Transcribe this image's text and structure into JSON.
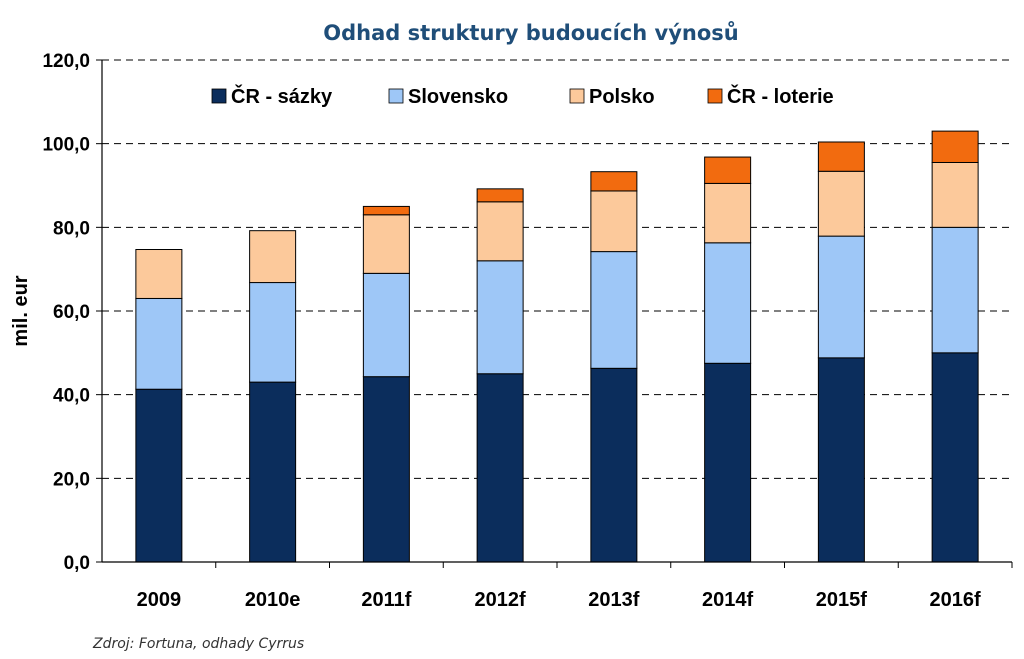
{
  "chart_data": {
    "type": "bar",
    "stacked": true,
    "title": "Odhad struktury budoucích výnosů",
    "ylabel": "mil. eur",
    "xlabel": "",
    "ylim": [
      0,
      120
    ],
    "yticks": [
      "0,0",
      "20,0",
      "40,0",
      "60,0",
      "80,0",
      "100,0",
      "120,0"
    ],
    "grid": true,
    "legend_position": "top",
    "categories": [
      "2009",
      "2010e",
      "2011f",
      "2012f",
      "2013f",
      "2014f",
      "2015f",
      "2016f"
    ],
    "series": [
      {
        "name": "ČR - sázky",
        "color": "#0b2d5c",
        "values": [
          41.3,
          43.0,
          44.3,
          45.0,
          46.3,
          47.5,
          48.8,
          50.0
        ]
      },
      {
        "name": "Slovensko",
        "color": "#9ec7f7",
        "values": [
          21.7,
          23.8,
          24.7,
          27.0,
          27.9,
          28.8,
          29.1,
          30.0
        ]
      },
      {
        "name": "Polsko",
        "color": "#fcc99b",
        "values": [
          11.7,
          12.4,
          14.0,
          14.1,
          14.5,
          14.2,
          15.5,
          15.5
        ]
      },
      {
        "name": "ČR - loterie",
        "color": "#f26b0f",
        "values": [
          0.0,
          0.0,
          2.0,
          3.1,
          4.6,
          6.3,
          7.0,
          7.5
        ]
      }
    ],
    "source": "Zdroj: Fortuna, odhady Cyrrus"
  }
}
